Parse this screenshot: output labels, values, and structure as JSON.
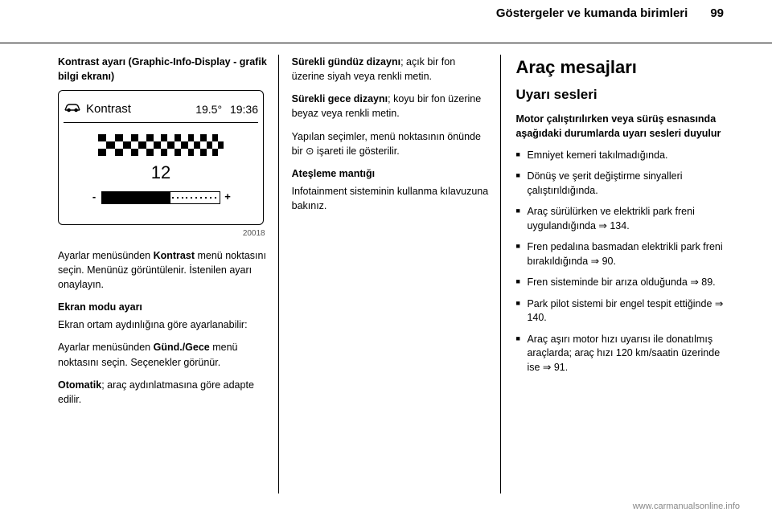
{
  "header": {
    "title": "Göstergeler ve kumanda birimleri",
    "page": "99"
  },
  "col1": {
    "section_title": "Kontrast ayarı (Graphic-Info-Display - grafik bilgi ekranı)",
    "display": {
      "label": "Kontrast",
      "temp": "19.5°",
      "time": "19:36",
      "value": "12",
      "slider_minus": "-",
      "slider_plus": "+",
      "image_ref": "20018",
      "slider_fill_pct": 58,
      "checker_colors": [
        "#000000",
        "#ffffff"
      ]
    },
    "p1_pre": "Ayarlar menüsünden ",
    "p1_bold": "Kontrast",
    "p1_post": " menü noktasını seçin. Menünüz görüntülenir. İstenilen ayarı onaylayın.",
    "sub2": "Ekran modu ayarı",
    "p2": "Ekran ortam aydınlığına göre ayarlanabilir:",
    "p3_pre": "Ayarlar menüsünden ",
    "p3_bold": "Günd./Gece",
    "p3_post": " menü noktasını seçin. Seçenekler görünür.",
    "p4_bold": "Otomatik",
    "p4_post": "; araç aydınlatmasına göre adapte edilir."
  },
  "col2": {
    "p1_bold": "Sürekli gündüz dizaynı",
    "p1_post": "; açık bir fon üzerine siyah veya renkli metin.",
    "p2_bold": "Sürekli gece dizaynı",
    "p2_post": "; koyu bir fon üzerine beyaz veya renkli metin.",
    "p3": "Yapılan seçimler, menü noktasının önünde bir ⊙ işareti ile gösterilir.",
    "sub": "Ateşleme mantığı",
    "p4": "Infotainment sisteminin kullanma kılavuzuna bakınız."
  },
  "col3": {
    "h1": "Araç mesajları",
    "h2": "Uyarı sesleri",
    "intro": "Motor çalıştırılırken veya sürüş esnasında aşağıdaki durumlarda uyarı sesleri duyulur",
    "items": [
      "Emniyet kemeri takılmadığında.",
      "Dönüş ve şerit değiştirme sinyalleri çalıştırıldığında.",
      "Araç sürülürken ve elektrikli park freni uygulandığında ⇒ 134.",
      "Fren pedalına basmadan elektrikli park freni bırakıldığında ⇒ 90.",
      "Fren sisteminde bir arıza olduğunda ⇒ 89.",
      "Park pilot sistemi bir engel tespit ettiğinde ⇒ 140.",
      "Araç aşırı motor hızı uyarısı ile donatılmış araçlarda; araç hızı 120 km/saatin üzerinde ise ⇒ 91."
    ]
  },
  "footer": "www.carmanualsonline.info"
}
